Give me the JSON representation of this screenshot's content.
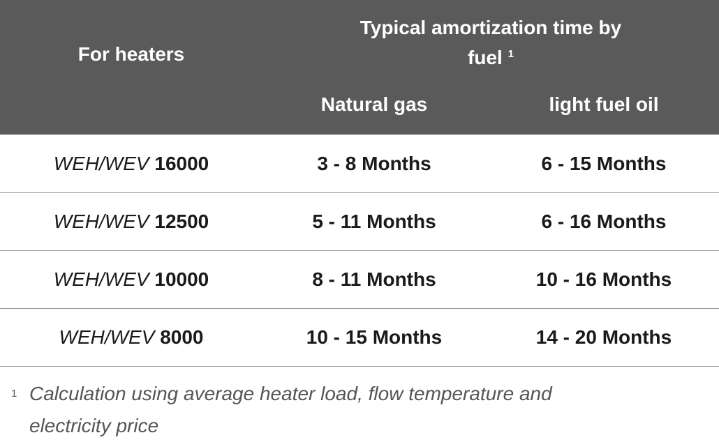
{
  "header": {
    "first_column": "For heaters",
    "group_title": "Typical amortization time by fuel",
    "group_note_marker": "1",
    "columns": [
      "Natural gas",
      "light fuel oil"
    ]
  },
  "table": {
    "rows": [
      {
        "series": "WEH/WEV",
        "model": "16000",
        "natural_gas": "3 - 8 Months",
        "light_fuel_oil": "6 - 15 Months"
      },
      {
        "series": "WEH/WEV",
        "model": "12500",
        "natural_gas": "5 - 11 Months",
        "light_fuel_oil": "6 - 16 Months"
      },
      {
        "series": "WEH/WEV",
        "model": "10000",
        "natural_gas": "8 - 11 Months",
        "light_fuel_oil": "10 - 16 Months"
      },
      {
        "series": "WEH/WEV",
        "model": "8000",
        "natural_gas": "10 - 15 Months",
        "light_fuel_oil": "14 - 20 Months"
      }
    ]
  },
  "footnote": {
    "marker": "1",
    "text": "Calculation using average heater load, flow temperature and electricity price"
  }
}
